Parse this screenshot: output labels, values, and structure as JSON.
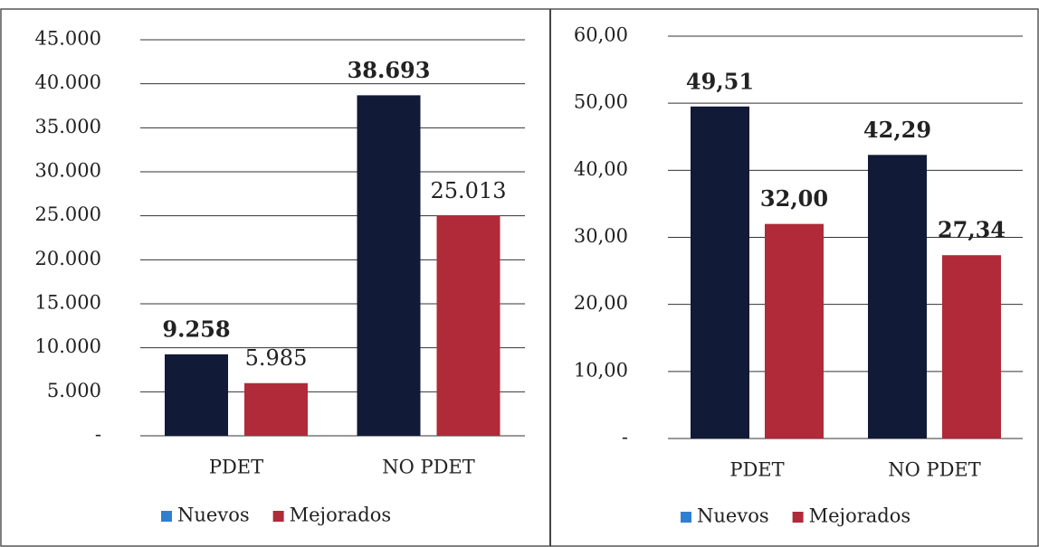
{
  "chart_data": [
    {
      "type": "bar",
      "categories": [
        "PDET",
        "NO PDET"
      ],
      "series": [
        {
          "name": "Nuevos",
          "color": "#111a36",
          "legend_color": "#2f7fd1",
          "values": [
            9258,
            38693
          ],
          "value_labels": [
            "9.258",
            "38.693"
          ],
          "bold_labels": true
        },
        {
          "name": "Mejorados",
          "color": "#b02a39",
          "legend_color": "#b02a39",
          "values": [
            5985,
            25013
          ],
          "value_labels": [
            "5.985",
            "25.013"
          ],
          "bold_labels": false
        }
      ],
      "ylim": [
        0,
        45000
      ],
      "yticks": [
        {
          "value": 0,
          "label": "-"
        },
        {
          "value": 5000,
          "label": "5.000"
        },
        {
          "value": 10000,
          "label": "10.000"
        },
        {
          "value": 15000,
          "label": "15.000"
        },
        {
          "value": 20000,
          "label": "20.000"
        },
        {
          "value": 25000,
          "label": "25.000"
        },
        {
          "value": 30000,
          "label": "30.000"
        },
        {
          "value": 35000,
          "label": "35.000"
        },
        {
          "value": 40000,
          "label": "40.000"
        },
        {
          "value": 45000,
          "label": "45.000"
        }
      ],
      "grid": true,
      "legend": "bottom"
    },
    {
      "type": "bar",
      "categories": [
        "PDET",
        "NO PDET"
      ],
      "series": [
        {
          "name": "Nuevos",
          "color": "#111a36",
          "legend_color": "#2f7fd1",
          "values": [
            49.51,
            42.29
          ],
          "value_labels": [
            "49,51",
            "42,29"
          ],
          "bold_labels": true
        },
        {
          "name": "Mejorados",
          "color": "#b02a39",
          "legend_color": "#b02a39",
          "values": [
            32.0,
            27.34
          ],
          "value_labels": [
            "32,00",
            "27,34"
          ],
          "bold_labels": true
        }
      ],
      "ylim": [
        0,
        60
      ],
      "yticks": [
        {
          "value": 0,
          "label": "-"
        },
        {
          "value": 10,
          "label": "10,00"
        },
        {
          "value": 20,
          "label": "20,00"
        },
        {
          "value": 30,
          "label": "30,00"
        },
        {
          "value": 40,
          "label": "40,00"
        },
        {
          "value": 50,
          "label": "50,00"
        },
        {
          "value": 60,
          "label": "60,00"
        }
      ],
      "grid": true,
      "legend": "bottom"
    }
  ]
}
